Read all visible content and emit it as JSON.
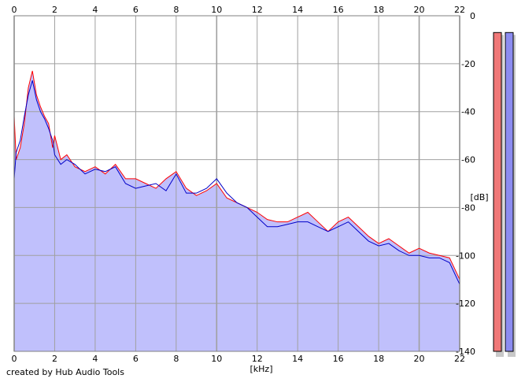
{
  "credit": "created by Hub Audio Tools",
  "colors": {
    "background": "#ffffff",
    "fill": "#c0c0fc",
    "left_channel": "#ff0000",
    "right_channel": "#0000c8",
    "meter_left": "#f07878",
    "meter_right": "#8c8cf0",
    "grid": "#a0a0a0"
  },
  "chart_data": {
    "type": "line",
    "xlabel": "[kHz]",
    "ylabel": "[dB]",
    "xlim": [
      0,
      22
    ],
    "ylim": [
      -140,
      0
    ],
    "x_ticks": [
      0,
      2,
      4,
      6,
      8,
      10,
      12,
      14,
      16,
      18,
      20,
      22
    ],
    "y_ticks": [
      0,
      -20,
      -40,
      -60,
      -80,
      -100,
      -120,
      -140
    ],
    "grid": true,
    "fill_under": true,
    "series": [
      {
        "color": "#ff0000",
        "x": [
          0.0,
          0.1,
          0.3,
          0.5,
          0.7,
          0.9,
          1.1,
          1.3,
          1.5,
          1.7,
          1.9,
          2.0,
          2.3,
          2.6,
          3.0,
          3.5,
          4.0,
          4.5,
          5.0,
          5.5,
          6.0,
          6.5,
          7.0,
          7.5,
          8.0,
          8.5,
          9.0,
          9.5,
          10.0,
          10.5,
          11.0,
          11.5,
          12.0,
          12.5,
          13.0,
          13.5,
          14.0,
          14.5,
          15.0,
          15.5,
          16.0,
          16.5,
          17.0,
          17.5,
          18.0,
          18.5,
          19.0,
          19.5,
          20.0,
          20.5,
          21.0,
          21.5,
          22.0
        ],
        "y": [
          -42,
          -60,
          -55,
          -45,
          -30,
          -23,
          -33,
          -38,
          -42,
          -45,
          -55,
          -50,
          -60,
          -58,
          -63,
          -65,
          -63,
          -66,
          -62,
          -68,
          -68,
          -70,
          -72,
          -68,
          -65,
          -72,
          -75,
          -73,
          -70,
          -76,
          -78,
          -80,
          -82,
          -85,
          -86,
          -86,
          -84,
          -82,
          -86,
          -90,
          -86,
          -84,
          -88,
          -92,
          -95,
          -93,
          -96,
          -99,
          -97,
          -99,
          -100,
          -101,
          -110
        ]
      },
      {
        "color": "#0000c8",
        "x": [
          0.0,
          0.1,
          0.3,
          0.5,
          0.7,
          0.9,
          1.1,
          1.3,
          1.5,
          1.7,
          1.9,
          2.0,
          2.3,
          2.6,
          3.0,
          3.5,
          4.0,
          4.5,
          5.0,
          5.5,
          6.0,
          6.5,
          7.0,
          7.5,
          8.0,
          8.5,
          9.0,
          9.5,
          10.0,
          10.5,
          11.0,
          11.5,
          12.0,
          12.5,
          13.0,
          13.5,
          14.0,
          14.5,
          15.0,
          15.5,
          16.0,
          16.5,
          17.0,
          17.5,
          18.0,
          18.5,
          19.0,
          19.5,
          20.0,
          20.5,
          21.0,
          21.5,
          22.0
        ],
        "y": [
          -68,
          -57,
          -52,
          -42,
          -33,
          -27,
          -35,
          -40,
          -43,
          -47,
          -52,
          -58,
          -62,
          -60,
          -62,
          -66,
          -64,
          -65,
          -63,
          -70,
          -72,
          -71,
          -70,
          -73,
          -66,
          -74,
          -74,
          -72,
          -68,
          -74,
          -78,
          -80,
          -84,
          -88,
          -88,
          -87,
          -86,
          -86,
          -88,
          -90,
          -88,
          -86,
          -90,
          -94,
          -96,
          -95,
          -98,
          -100,
          -100,
          -101,
          -101,
          -103,
          -112
        ]
      }
    ],
    "meters": [
      {
        "color": "#f07878",
        "level_db": -7
      },
      {
        "color": "#8c8cf0",
        "level_db": -7
      }
    ]
  }
}
